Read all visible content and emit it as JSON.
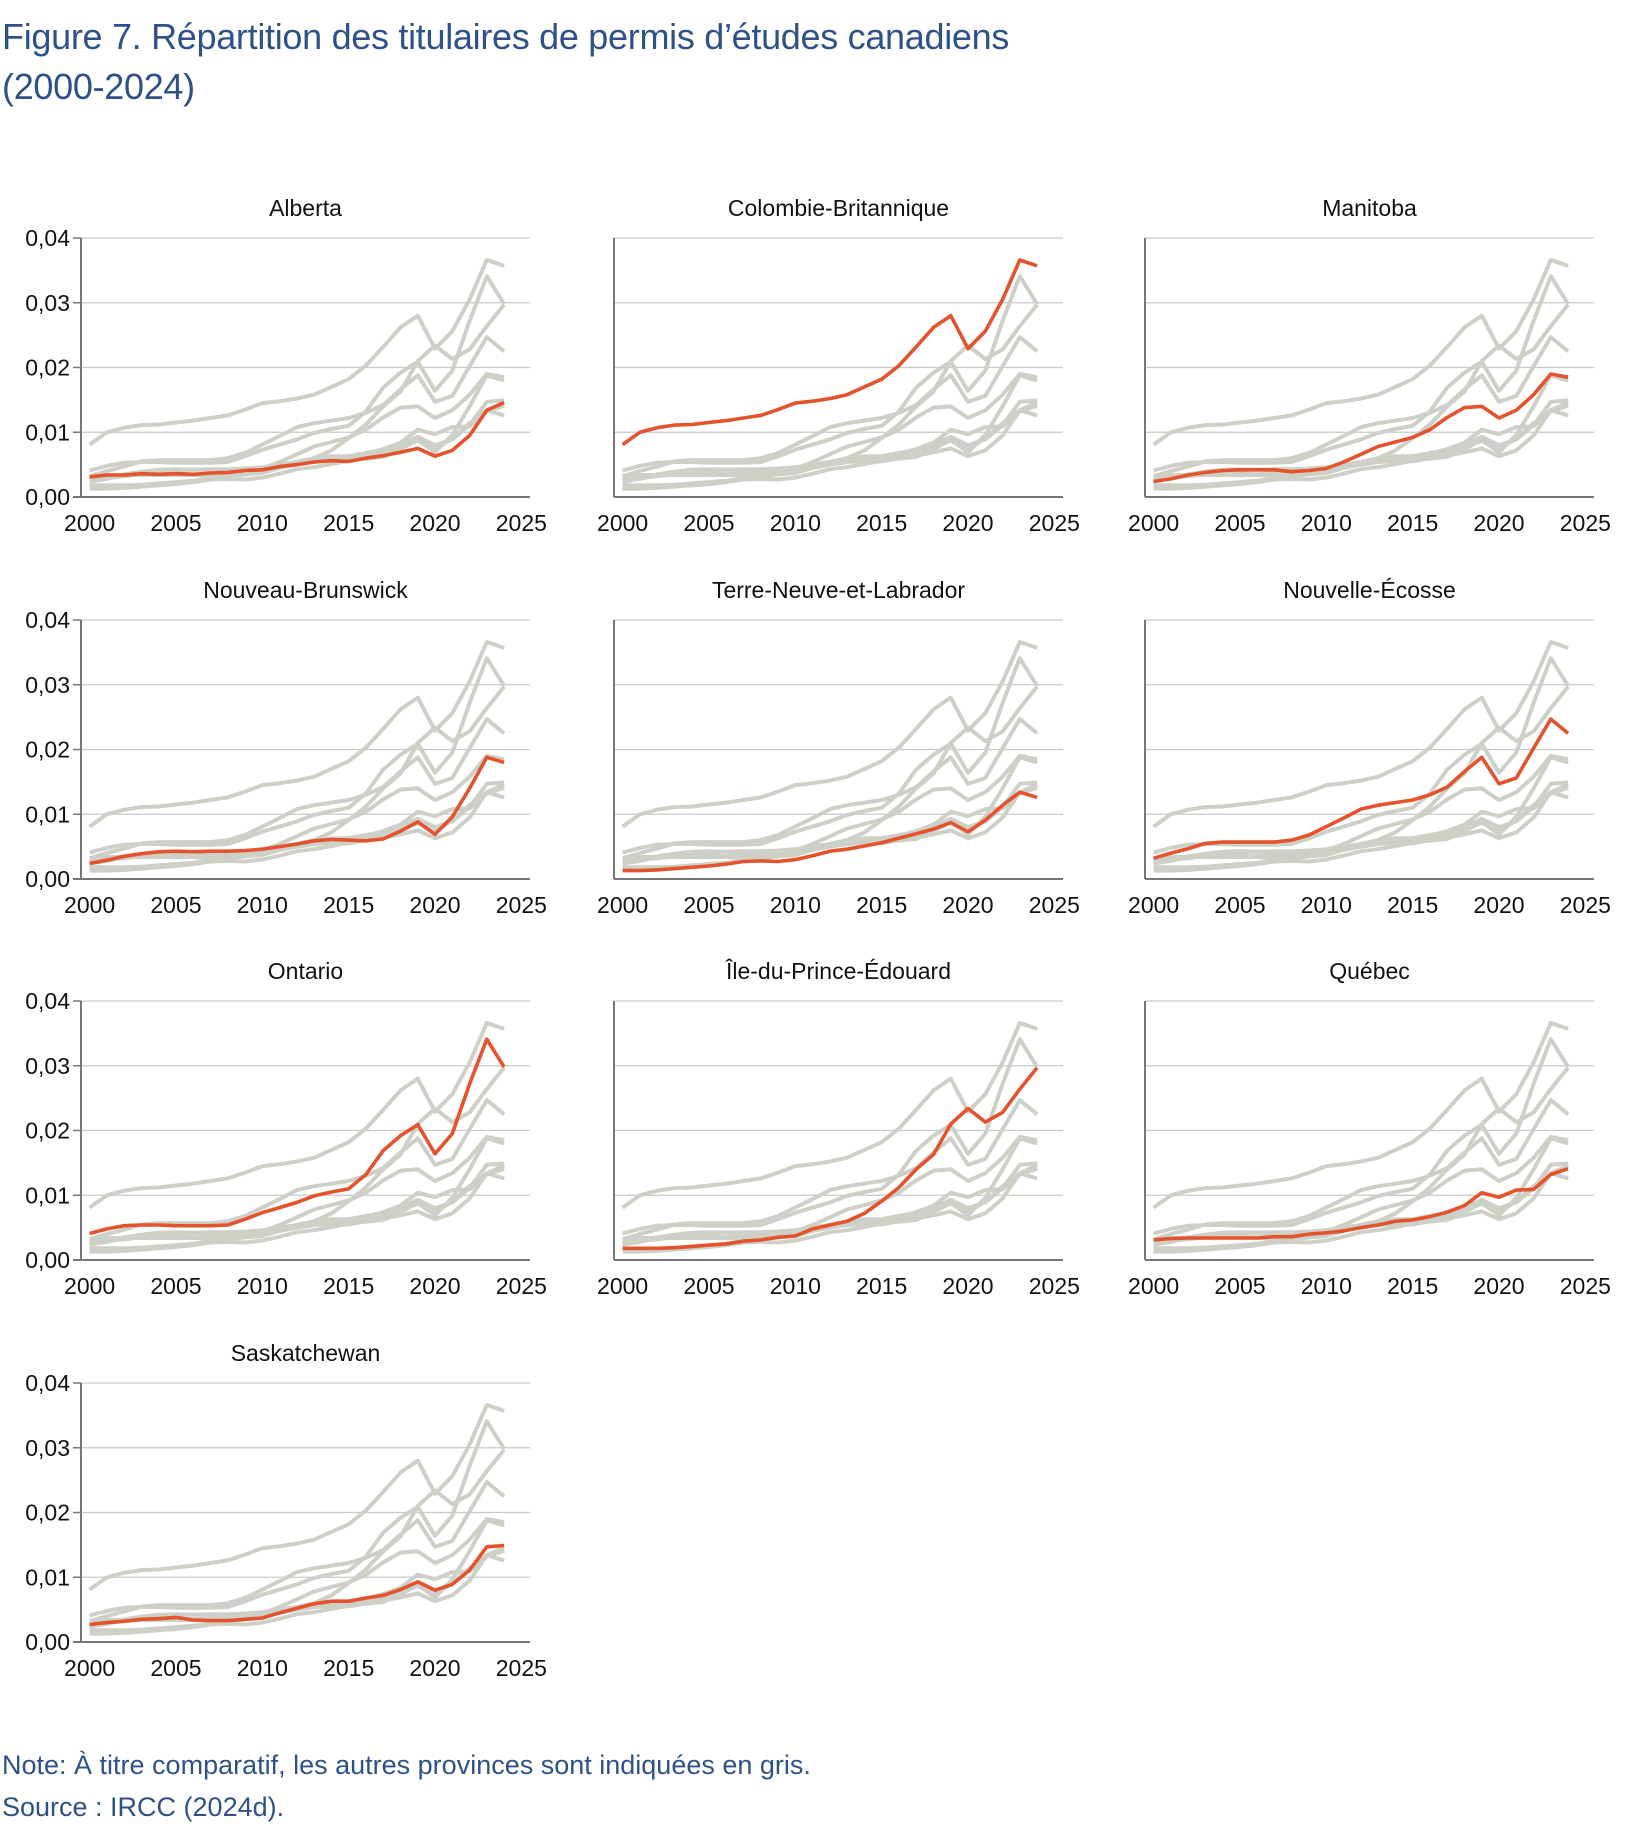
{
  "header": {
    "title_line1": "Figure 7. Répartition des titulaires de permis d’études canadiens",
    "title_line2": "(2000-2024)"
  },
  "footer": {
    "note": "Note: À titre comparatif, les autres provinces sont indiquées en gris.",
    "source": "Source : IRCC (2024d)."
  },
  "colors": {
    "highlight": "#e4532d",
    "others": "#ccd0c6",
    "grid": "#c9c9c9",
    "axis": "#777777",
    "title": "#2e5288"
  },
  "chart_data": {
    "type": "line",
    "layout": "small-multiples",
    "title": "Figure 7. Répartition des titulaires de permis d’études canadiens (2000-2024)",
    "xlabel": "",
    "ylabel": "",
    "xlim": [
      2000,
      2025
    ],
    "ylim": [
      0,
      0.04
    ],
    "x_ticks": [
      2000,
      2005,
      2010,
      2015,
      2020,
      2025
    ],
    "y_ticks": [
      0,
      0.01,
      0.02,
      0.03,
      0.04
    ],
    "y_tick_labels": [
      "0,00",
      "0,01",
      "0,02",
      "0,03",
      "0,04"
    ],
    "grid": true,
    "x": [
      2000,
      2001,
      2002,
      2003,
      2004,
      2005,
      2006,
      2007,
      2008,
      2009,
      2010,
      2011,
      2012,
      2013,
      2014,
      2015,
      2016,
      2017,
      2018,
      2019,
      2020,
      2021,
      2022,
      2023,
      2024
    ],
    "series": [
      {
        "name": "Alberta",
        "values": [
          0.0031,
          0.0034,
          0.0034,
          0.0036,
          0.0035,
          0.0036,
          0.0035,
          0.0037,
          0.0038,
          0.0041,
          0.0042,
          0.0047,
          0.005,
          0.0054,
          0.0056,
          0.0055,
          0.006,
          0.0064,
          0.0069,
          0.0075,
          0.0063,
          0.0072,
          0.0095,
          0.0134,
          0.0146
        ]
      },
      {
        "name": "Colombie-Britannique",
        "values": [
          0.0081,
          0.01,
          0.0107,
          0.0111,
          0.0112,
          0.0115,
          0.0118,
          0.0122,
          0.0126,
          0.0135,
          0.0145,
          0.0148,
          0.0152,
          0.0158,
          0.017,
          0.0182,
          0.0203,
          0.0232,
          0.0262,
          0.028,
          0.0229,
          0.0256,
          0.0305,
          0.0366,
          0.0357
        ]
      },
      {
        "name": "Manitoba",
        "values": [
          0.0024,
          0.0028,
          0.0034,
          0.0038,
          0.0041,
          0.0042,
          0.0042,
          0.0042,
          0.0039,
          0.0041,
          0.0044,
          0.0054,
          0.0066,
          0.0078,
          0.0085,
          0.0092,
          0.0104,
          0.0123,
          0.0138,
          0.014,
          0.0122,
          0.0134,
          0.0158,
          0.019,
          0.0185
        ]
      },
      {
        "name": "Nouveau-Brunswick",
        "values": [
          0.0024,
          0.0029,
          0.0035,
          0.0039,
          0.0042,
          0.0043,
          0.0042,
          0.0043,
          0.0043,
          0.0044,
          0.0046,
          0.005,
          0.0054,
          0.0059,
          0.0061,
          0.006,
          0.0059,
          0.0062,
          0.0074,
          0.0088,
          0.0069,
          0.0096,
          0.014,
          0.0188,
          0.018
        ]
      },
      {
        "name": "Terre-Neuve-et-Labrador",
        "values": [
          0.0013,
          0.0013,
          0.0014,
          0.0016,
          0.0018,
          0.002,
          0.0023,
          0.0027,
          0.0028,
          0.0027,
          0.003,
          0.0036,
          0.0043,
          0.0046,
          0.0051,
          0.0056,
          0.0063,
          0.007,
          0.0077,
          0.0087,
          0.0073,
          0.0091,
          0.0114,
          0.0134,
          0.0126
        ]
      },
      {
        "name": "Nouvelle-Écosse",
        "values": [
          0.0032,
          0.004,
          0.0047,
          0.0055,
          0.0057,
          0.0057,
          0.0057,
          0.0057,
          0.006,
          0.0068,
          0.0081,
          0.0094,
          0.0108,
          0.0114,
          0.0118,
          0.0122,
          0.013,
          0.0142,
          0.0166,
          0.0188,
          0.0147,
          0.0156,
          0.0202,
          0.0247,
          0.0225
        ]
      },
      {
        "name": "Ontario",
        "values": [
          0.0041,
          0.0048,
          0.0053,
          0.0054,
          0.0054,
          0.0053,
          0.0053,
          0.0053,
          0.0054,
          0.0063,
          0.0073,
          0.0081,
          0.0089,
          0.0099,
          0.0105,
          0.011,
          0.0132,
          0.0169,
          0.0192,
          0.0209,
          0.0164,
          0.0195,
          0.0272,
          0.0341,
          0.0298
        ]
      },
      {
        "name": "Île-du-Prince-Édouard",
        "values": [
          0.0018,
          0.0018,
          0.0018,
          0.0019,
          0.0021,
          0.0023,
          0.0025,
          0.0029,
          0.0031,
          0.0035,
          0.0037,
          0.0048,
          0.0054,
          0.006,
          0.0072,
          0.0091,
          0.0112,
          0.014,
          0.0163,
          0.021,
          0.0234,
          0.0213,
          0.0228,
          0.0264,
          0.0297
        ]
      },
      {
        "name": "Québec",
        "values": [
          0.0031,
          0.0033,
          0.0034,
          0.0034,
          0.0034,
          0.0034,
          0.0034,
          0.0036,
          0.0036,
          0.004,
          0.0042,
          0.0045,
          0.005,
          0.0054,
          0.006,
          0.0062,
          0.0067,
          0.0074,
          0.0084,
          0.0104,
          0.0097,
          0.0108,
          0.0109,
          0.0132,
          0.0141
        ]
      },
      {
        "name": "Saskatchewan",
        "values": [
          0.0027,
          0.003,
          0.0032,
          0.0035,
          0.0036,
          0.0038,
          0.0034,
          0.0033,
          0.0033,
          0.0035,
          0.0037,
          0.0045,
          0.0052,
          0.0059,
          0.0063,
          0.0063,
          0.0068,
          0.0072,
          0.0081,
          0.0093,
          0.008,
          0.0089,
          0.0111,
          0.0147,
          0.0149
        ]
      }
    ]
  }
}
